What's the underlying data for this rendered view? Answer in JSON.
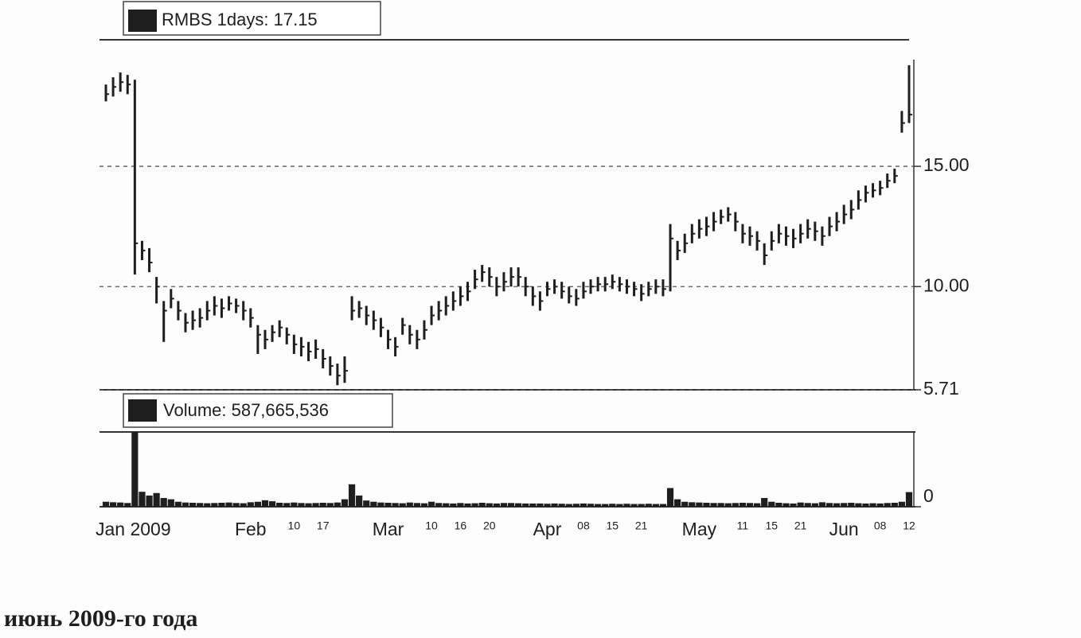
{
  "chart_data": [
    {
      "type": "ohlc",
      "legend": "RMBS 1days: 17.15",
      "color": "#1e1e1e",
      "close": [
        18.0,
        18.3,
        18.5,
        18.4,
        11.8,
        11.5,
        11.0,
        10.0,
        9.0,
        9.5,
        9.0,
        8.5,
        8.6,
        8.7,
        9.0,
        9.2,
        9.1,
        9.3,
        9.2,
        9.0,
        8.7,
        8.0,
        7.8,
        8.1,
        8.3,
        8.0,
        7.6,
        7.5,
        7.3,
        7.4,
        7.0,
        6.7,
        6.3,
        6.5,
        9.0,
        9.1,
        8.8,
        8.6,
        8.3,
        7.8,
        7.5,
        8.4,
        8.0,
        7.8,
        8.2,
        8.8,
        9.0,
        9.2,
        9.4,
        9.6,
        9.8,
        10.3,
        10.6,
        10.4,
        10.0,
        10.2,
        10.4,
        10.4,
        10.0,
        9.6,
        9.4,
        9.9,
        10.0,
        9.8,
        9.6,
        9.5,
        9.8,
        10.0,
        10.1,
        10.1,
        10.2,
        10.1,
        10.0,
        9.9,
        9.7,
        9.9,
        10.0,
        9.9,
        12.0,
        11.5,
        11.8,
        12.2,
        12.4,
        12.5,
        12.7,
        12.9,
        13.0,
        12.7,
        12.2,
        12.1,
        11.9,
        11.3,
        11.9,
        12.2,
        12.1,
        12.0,
        12.2,
        12.4,
        12.3,
        12.1,
        12.5,
        12.7,
        13.0,
        13.2,
        13.6,
        13.9,
        14.0,
        14.1,
        14.4,
        14.6,
        16.8,
        17.15
      ],
      "high": [
        18.4,
        18.7,
        18.9,
        18.8,
        18.6,
        11.9,
        11.6,
        10.4,
        9.4,
        9.9,
        9.4,
        8.9,
        9.0,
        9.1,
        9.4,
        9.6,
        9.5,
        9.6,
        9.5,
        9.4,
        9.1,
        8.4,
        8.2,
        8.4,
        8.6,
        8.3,
        8.0,
        7.9,
        7.7,
        7.8,
        7.4,
        7.1,
        6.8,
        7.1,
        9.6,
        9.4,
        9.2,
        9.0,
        8.7,
        8.2,
        7.9,
        8.7,
        8.4,
        8.2,
        8.6,
        9.2,
        9.4,
        9.6,
        9.8,
        10.0,
        10.2,
        10.7,
        10.9,
        10.8,
        10.4,
        10.6,
        10.8,
        10.8,
        10.4,
        10.0,
        9.8,
        10.2,
        10.3,
        10.2,
        10.0,
        9.9,
        10.2,
        10.3,
        10.4,
        10.4,
        10.5,
        10.4,
        10.3,
        10.2,
        10.1,
        10.2,
        10.3,
        10.3,
        12.6,
        11.9,
        12.2,
        12.6,
        12.8,
        12.9,
        13.1,
        13.2,
        13.3,
        13.1,
        12.6,
        12.5,
        12.3,
        11.8,
        12.3,
        12.6,
        12.5,
        12.4,
        12.6,
        12.8,
        12.7,
        12.5,
        12.9,
        13.1,
        13.4,
        13.6,
        14.0,
        14.2,
        14.3,
        14.4,
        14.7,
        14.9,
        17.3,
        19.2
      ],
      "low": [
        17.7,
        17.9,
        18.1,
        18.0,
        10.5,
        11.1,
        10.6,
        9.3,
        7.7,
        9.1,
        8.6,
        8.1,
        8.2,
        8.3,
        8.6,
        8.8,
        8.7,
        9.0,
        8.9,
        8.6,
        8.3,
        7.2,
        7.4,
        7.7,
        7.9,
        7.6,
        7.2,
        7.1,
        6.9,
        7.0,
        6.6,
        6.3,
        5.9,
        6.0,
        8.6,
        8.7,
        8.4,
        8.2,
        7.9,
        7.4,
        7.1,
        8.0,
        7.6,
        7.4,
        7.8,
        8.4,
        8.6,
        8.8,
        9.0,
        9.2,
        9.4,
        9.9,
        10.2,
        10.0,
        9.6,
        9.8,
        10.0,
        10.0,
        9.6,
        9.2,
        9.0,
        9.6,
        9.7,
        9.5,
        9.3,
        9.2,
        9.5,
        9.7,
        9.8,
        9.8,
        9.9,
        9.8,
        9.7,
        9.6,
        9.4,
        9.6,
        9.7,
        9.6,
        9.8,
        11.1,
        11.4,
        11.8,
        12.0,
        12.1,
        12.3,
        12.6,
        12.7,
        12.3,
        11.8,
        11.7,
        11.5,
        10.9,
        11.5,
        11.8,
        11.7,
        11.6,
        11.8,
        12.0,
        11.9,
        11.7,
        12.1,
        12.3,
        12.6,
        12.8,
        13.2,
        13.5,
        13.7,
        13.8,
        14.1,
        14.3,
        16.4,
        16.8
      ],
      "ylim": [
        5.71,
        20.26
      ],
      "yticks": [
        5.71,
        {
          "value": 10,
          "label": "10.00"
        },
        {
          "value": 15,
          "label": "15.00"
        }
      ],
      "grid": true
    },
    {
      "type": "bar",
      "legend": "Volume: 587,665,536",
      "color": "#1e1e1e",
      "categories": [
        "Jan 2009",
        null,
        null,
        null,
        null,
        null,
        null,
        null,
        null,
        null,
        null,
        null,
        null,
        null,
        null,
        null,
        null,
        null,
        null,
        null,
        "Feb",
        null,
        null,
        null,
        null,
        null,
        "10",
        null,
        null,
        null,
        "17",
        null,
        null,
        null,
        null,
        null,
        null,
        null,
        null,
        "Mar",
        null,
        null,
        null,
        null,
        null,
        "10",
        null,
        null,
        null,
        "16",
        null,
        null,
        null,
        "20",
        null,
        null,
        null,
        null,
        null,
        null,
        null,
        "Apr",
        null,
        null,
        null,
        null,
        "08",
        null,
        null,
        null,
        "15",
        null,
        null,
        null,
        "21",
        null,
        null,
        null,
        null,
        null,
        null,
        null,
        "May",
        null,
        null,
        null,
        null,
        null,
        "11",
        null,
        null,
        null,
        "15",
        null,
        null,
        null,
        "21",
        null,
        null,
        null,
        null,
        null,
        "Jun",
        null,
        null,
        null,
        null,
        "08",
        null,
        null,
        null,
        "12"
      ],
      "values": [
        200000000,
        180000000,
        170000000,
        150000000,
        3000000000,
        600000000,
        450000000,
        550000000,
        350000000,
        300000000,
        200000000,
        170000000,
        160000000,
        150000000,
        140000000,
        150000000,
        160000000,
        170000000,
        150000000,
        140000000,
        180000000,
        200000000,
        260000000,
        220000000,
        160000000,
        150000000,
        170000000,
        150000000,
        140000000,
        150000000,
        160000000,
        150000000,
        170000000,
        300000000,
        900000000,
        450000000,
        250000000,
        200000000,
        170000000,
        160000000,
        150000000,
        140000000,
        170000000,
        150000000,
        140000000,
        200000000,
        150000000,
        140000000,
        130000000,
        150000000,
        130000000,
        140000000,
        160000000,
        140000000,
        130000000,
        150000000,
        150000000,
        140000000,
        130000000,
        130000000,
        130000000,
        120000000,
        130000000,
        120000000,
        110000000,
        120000000,
        130000000,
        120000000,
        110000000,
        110000000,
        120000000,
        110000000,
        120000000,
        110000000,
        110000000,
        120000000,
        110000000,
        110000000,
        750000000,
        300000000,
        200000000,
        180000000,
        170000000,
        160000000,
        150000000,
        150000000,
        140000000,
        150000000,
        160000000,
        150000000,
        140000000,
        350000000,
        200000000,
        160000000,
        140000000,
        130000000,
        170000000,
        150000000,
        140000000,
        180000000,
        150000000,
        140000000,
        150000000,
        160000000,
        140000000,
        130000000,
        140000000,
        130000000,
        150000000,
        160000000,
        200000000,
        587665536
      ],
      "ylim": [
        0,
        3000000000
      ],
      "yticks": [
        0
      ]
    }
  ],
  "caption": "июнь 2009-го года"
}
